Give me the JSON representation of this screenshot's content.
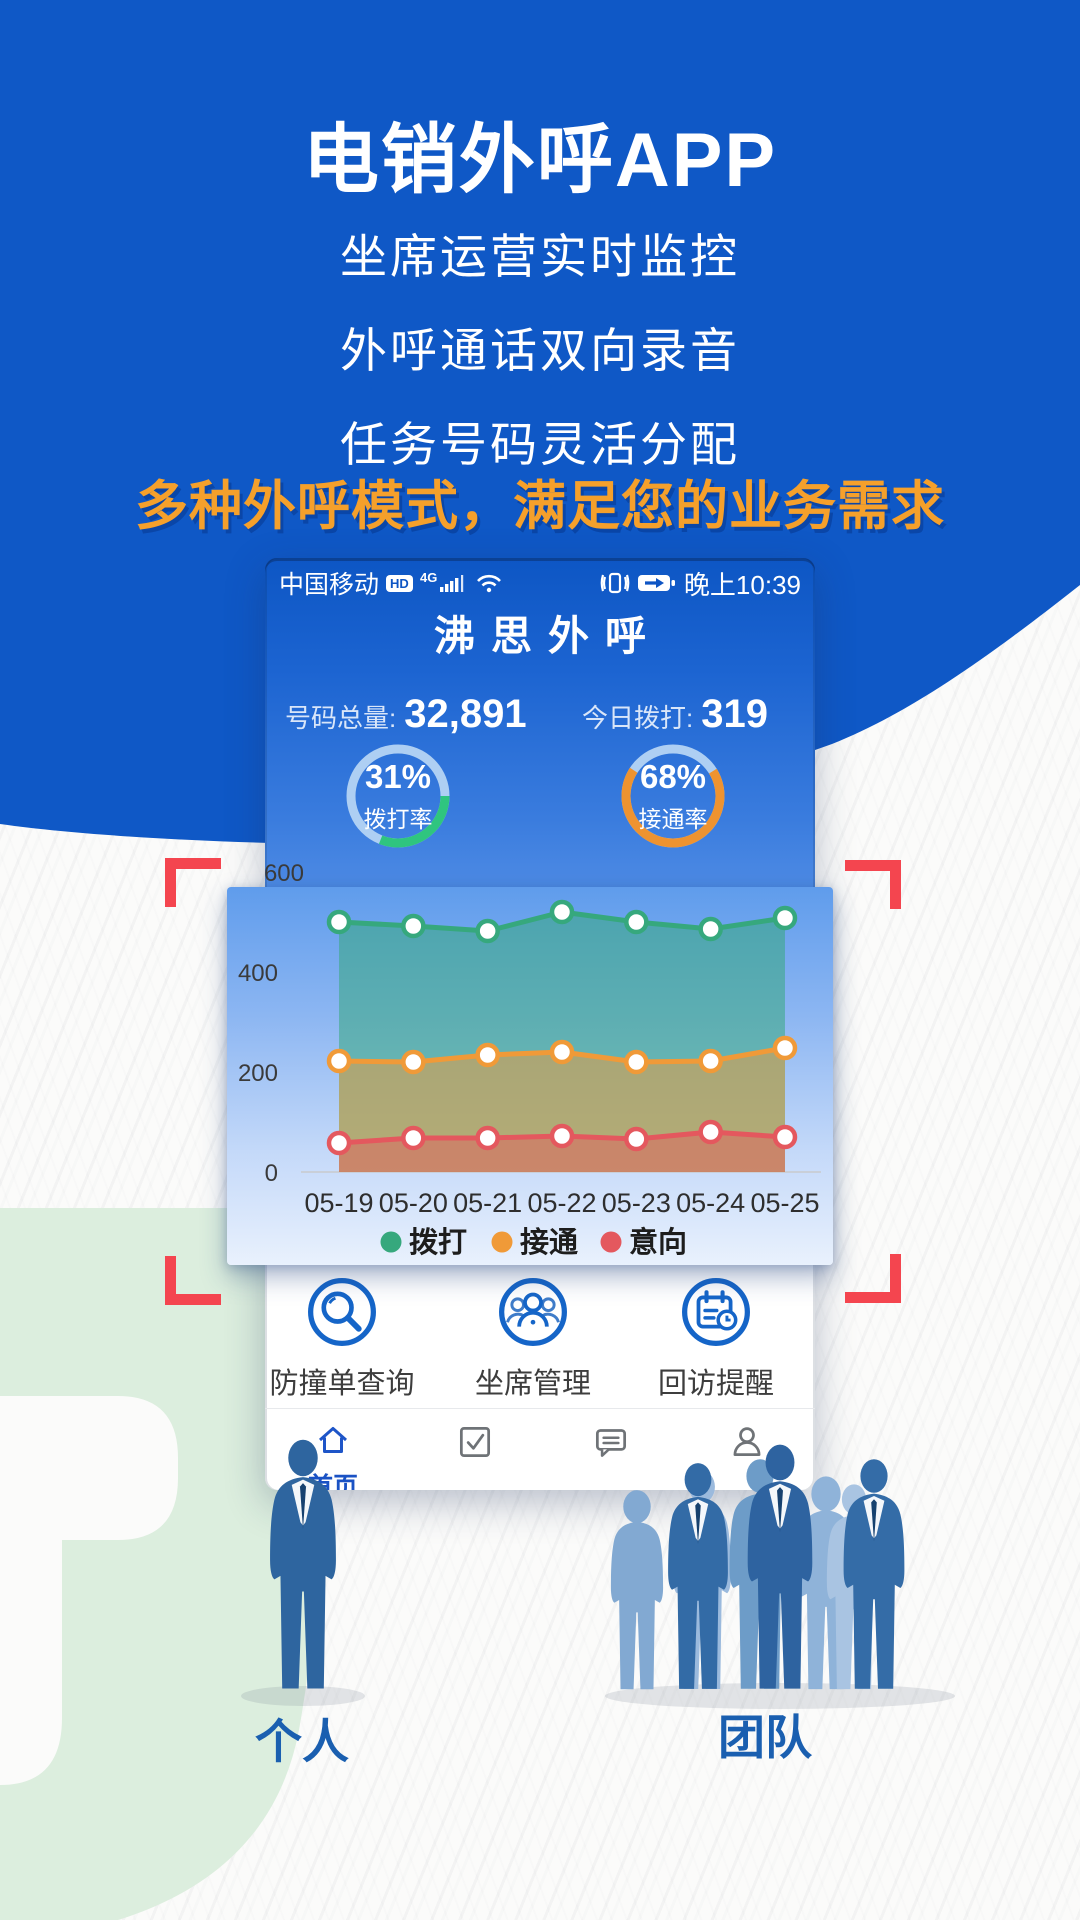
{
  "header": {
    "title": "电销外呼APP",
    "subtitles": [
      "坐席运营实时监控",
      "外呼通话双向录音",
      "任务号码灵活分配"
    ],
    "highlight": "多种外呼模式，满足您的业务需求"
  },
  "phone": {
    "status_bar": {
      "carrier": "中国移动",
      "hd": "HD",
      "network": "4G",
      "time": "晚上10:39"
    },
    "app_title": "沸思外呼",
    "stats": [
      {
        "label": "号码总量:",
        "value": "32,891"
      },
      {
        "label": "今日拨打:",
        "value": "319"
      }
    ],
    "donuts": [
      {
        "percent": 31,
        "percent_text": "31%",
        "label": "拨打率",
        "color": "#2FC57F",
        "start_deg": 90
      },
      {
        "percent": 68,
        "percent_text": "68%",
        "label": "接通率",
        "color": "#EE9330",
        "start_deg": 58
      }
    ],
    "features": [
      {
        "label": "防撞单查询",
        "icon": "magnifier-icon"
      },
      {
        "label": "坐席管理",
        "icon": "agents-icon"
      },
      {
        "label": "回访提醒",
        "icon": "calendar-clock-icon"
      }
    ],
    "nav": {
      "home_label": "首页"
    }
  },
  "chart_data": {
    "type": "area-line",
    "x": [
      "05-19",
      "05-20",
      "05-21",
      "05-22",
      "05-23",
      "05-24",
      "05-25"
    ],
    "series": [
      {
        "name": "拨打",
        "color": "#36A87D",
        "fill_alpha": 0.55,
        "values": [
          500,
          492,
          482,
          520,
          500,
          486,
          508
        ]
      },
      {
        "name": "接通",
        "color": "#F09A38",
        "fill_alpha": 0.5,
        "values": [
          222,
          220,
          234,
          240,
          220,
          222,
          248
        ]
      },
      {
        "name": "意向",
        "color": "#E4585E",
        "fill_alpha": 0.45,
        "values": [
          58,
          68,
          68,
          72,
          66,
          80,
          70
        ]
      }
    ],
    "ylim": [
      0,
      600
    ],
    "yticks": [
      0,
      200,
      400,
      600
    ],
    "legend_position": "bottom",
    "grid": false
  },
  "footer": {
    "individual_label": "个人",
    "team_label": "团队"
  },
  "colors": {
    "primary_blue": "#0F58C6",
    "accent_orange": "#F5A02B",
    "bracket_red": "#F4454F",
    "mint_green": "#DCEEDE",
    "silhouette_blue": "#2E65A0"
  }
}
